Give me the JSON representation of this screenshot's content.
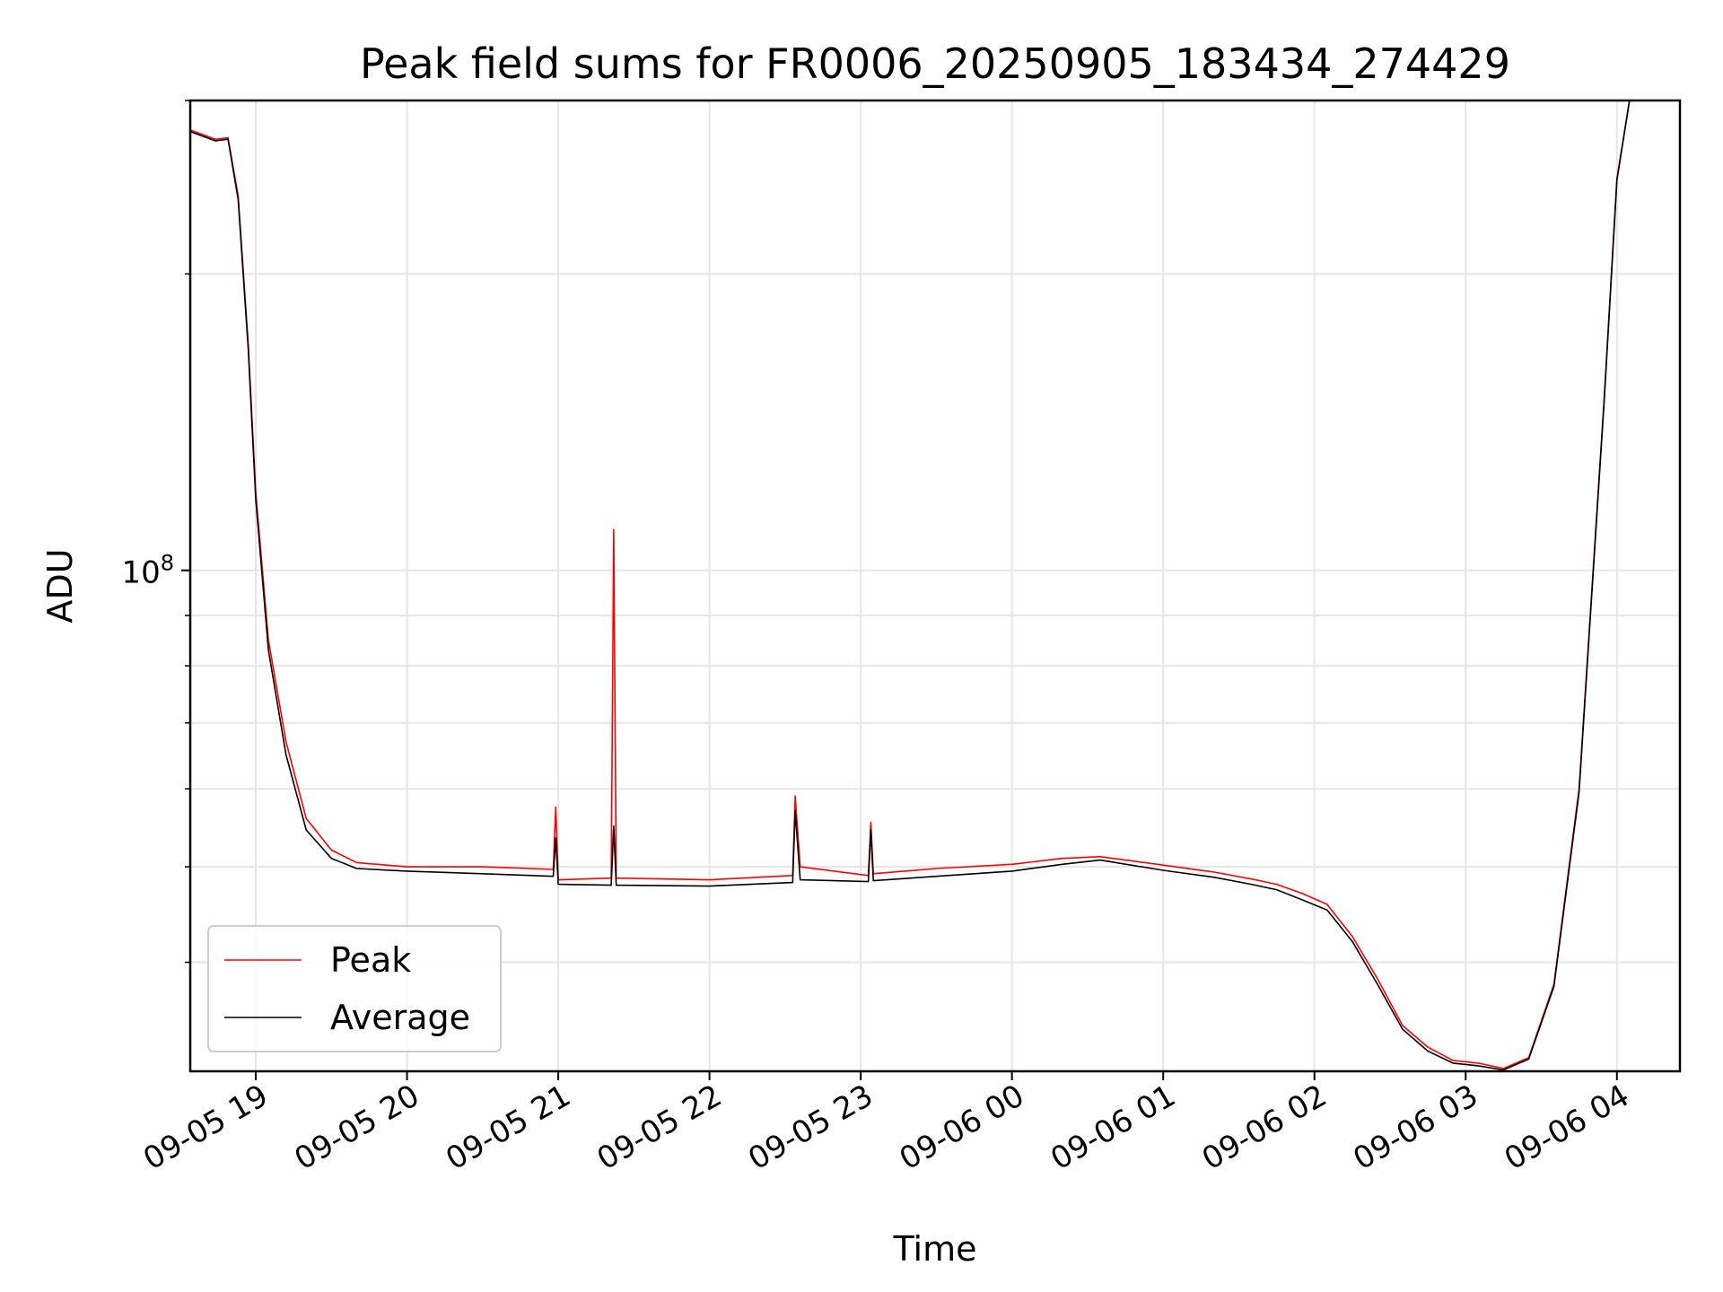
{
  "chart_data": {
    "type": "line",
    "title": "Peak field sums for FR0006_20250905_183434_274429",
    "xlabel": "Time",
    "ylabel": "ADU",
    "y_scale": "log",
    "grid": true,
    "legend_position": "lower-left",
    "xlim": [
      "2025-09-05T18:34",
      "2025-09-06T04:25"
    ],
    "ylim": [
      31000000,
      300000000
    ],
    "x_ticks": [
      {
        "t": "2025-09-05T19:00",
        "label": "09-05 19"
      },
      {
        "t": "2025-09-05T20:00",
        "label": "09-05 20"
      },
      {
        "t": "2025-09-05T21:00",
        "label": "09-05 21"
      },
      {
        "t": "2025-09-05T22:00",
        "label": "09-05 22"
      },
      {
        "t": "2025-09-05T23:00",
        "label": "09-05 23"
      },
      {
        "t": "2025-09-06T00:00",
        "label": "09-06 00"
      },
      {
        "t": "2025-09-06T01:00",
        "label": "09-06 01"
      },
      {
        "t": "2025-09-06T02:00",
        "label": "09-06 02"
      },
      {
        "t": "2025-09-06T03:00",
        "label": "09-06 03"
      },
      {
        "t": "2025-09-06T04:00",
        "label": "09-06 04"
      }
    ],
    "y_major_ticks": [
      {
        "value": 100000000,
        "label": "10",
        "exponent": "8"
      }
    ],
    "y_minor_ticks": [
      40000000,
      50000000,
      60000000,
      70000000,
      80000000,
      90000000,
      200000000,
      300000000
    ],
    "series": [
      {
        "name": "Peak",
        "color": "#ff0000",
        "points": [
          [
            "2025-09-05T18:34",
            280000000
          ],
          [
            "2025-09-05T18:44",
            274000000
          ],
          [
            "2025-09-05T18:49",
            275000000
          ],
          [
            "2025-09-05T18:53",
            240000000
          ],
          [
            "2025-09-05T18:57",
            170000000
          ],
          [
            "2025-09-05T19:00",
            120000000
          ],
          [
            "2025-09-05T19:05",
            85000000
          ],
          [
            "2025-09-05T19:12",
            67000000
          ],
          [
            "2025-09-05T19:20",
            56000000
          ],
          [
            "2025-09-05T19:30",
            52000000
          ],
          [
            "2025-09-05T19:40",
            50500000
          ],
          [
            "2025-09-05T20:00",
            50000000
          ],
          [
            "2025-09-05T20:30",
            50000000
          ],
          [
            "2025-09-05T20:58",
            49700000
          ],
          [
            "2025-09-05T20:59",
            57500000
          ],
          [
            "2025-09-05T21:00",
            48500000
          ],
          [
            "2025-09-05T21:21",
            48700000
          ],
          [
            "2025-09-05T21:22",
            110000000
          ],
          [
            "2025-09-05T21:23",
            48700000
          ],
          [
            "2025-09-05T22:00",
            48500000
          ],
          [
            "2025-09-05T22:33",
            49000000
          ],
          [
            "2025-09-05T22:34",
            59000000
          ],
          [
            "2025-09-05T22:36",
            50000000
          ],
          [
            "2025-09-05T23:03",
            49000000
          ],
          [
            "2025-09-05T23:04",
            55500000
          ],
          [
            "2025-09-05T23:05",
            49200000
          ],
          [
            "2025-09-05T23:30",
            49800000
          ],
          [
            "2025-09-06T00:00",
            50300000
          ],
          [
            "2025-09-06T00:20",
            51000000
          ],
          [
            "2025-09-06T00:35",
            51200000
          ],
          [
            "2025-09-06T01:00",
            50200000
          ],
          [
            "2025-09-06T01:20",
            49400000
          ],
          [
            "2025-09-06T01:35",
            48600000
          ],
          [
            "2025-09-06T01:45",
            48000000
          ],
          [
            "2025-09-06T01:55",
            47000000
          ],
          [
            "2025-09-06T02:05",
            45800000
          ],
          [
            "2025-09-06T02:15",
            42500000
          ],
          [
            "2025-09-06T02:25",
            38500000
          ],
          [
            "2025-09-06T02:35",
            34500000
          ],
          [
            "2025-09-06T02:45",
            32800000
          ],
          [
            "2025-09-06T02:55",
            31800000
          ],
          [
            "2025-09-06T03:05",
            31600000
          ],
          [
            "2025-09-06T03:15",
            31200000
          ],
          [
            "2025-09-06T03:25",
            32000000
          ],
          [
            "2025-09-06T03:35",
            38000000
          ],
          [
            "2025-09-06T03:45",
            60000000
          ],
          [
            "2025-09-06T03:55",
            150000000
          ],
          [
            "2025-09-06T04:00",
            250000000
          ],
          [
            "2025-09-06T04:05",
            300000000
          ],
          [
            "2025-09-06T04:25",
            300000000
          ]
        ]
      },
      {
        "name": "Average",
        "color": "#000000",
        "points": [
          [
            "2025-09-05T18:34",
            279000000
          ],
          [
            "2025-09-05T18:44",
            273000000
          ],
          [
            "2025-09-05T18:49",
            274000000
          ],
          [
            "2025-09-05T18:53",
            238000000
          ],
          [
            "2025-09-05T18:57",
            168000000
          ],
          [
            "2025-09-05T19:00",
            118000000
          ],
          [
            "2025-09-05T19:05",
            83000000
          ],
          [
            "2025-09-05T19:12",
            65000000
          ],
          [
            "2025-09-05T19:20",
            54500000
          ],
          [
            "2025-09-05T19:30",
            51000000
          ],
          [
            "2025-09-05T19:40",
            49800000
          ],
          [
            "2025-09-05T20:00",
            49500000
          ],
          [
            "2025-09-05T20:30",
            49200000
          ],
          [
            "2025-09-05T20:58",
            48900000
          ],
          [
            "2025-09-05T20:59",
            53500000
          ],
          [
            "2025-09-05T21:00",
            48000000
          ],
          [
            "2025-09-05T21:21",
            47900000
          ],
          [
            "2025-09-05T21:22",
            55000000
          ],
          [
            "2025-09-05T21:23",
            47900000
          ],
          [
            "2025-09-05T22:00",
            47800000
          ],
          [
            "2025-09-05T22:33",
            48200000
          ],
          [
            "2025-09-05T22:34",
            57000000
          ],
          [
            "2025-09-05T22:36",
            48500000
          ],
          [
            "2025-09-05T23:03",
            48300000
          ],
          [
            "2025-09-05T23:04",
            54500000
          ],
          [
            "2025-09-05T23:05",
            48400000
          ],
          [
            "2025-09-05T23:30",
            48900000
          ],
          [
            "2025-09-06T00:00",
            49500000
          ],
          [
            "2025-09-06T00:20",
            50300000
          ],
          [
            "2025-09-06T00:35",
            50800000
          ],
          [
            "2025-09-06T01:00",
            49600000
          ],
          [
            "2025-09-06T01:20",
            48800000
          ],
          [
            "2025-09-06T01:35",
            48000000
          ],
          [
            "2025-09-06T01:45",
            47400000
          ],
          [
            "2025-09-06T01:55",
            46300000
          ],
          [
            "2025-09-06T02:05",
            45200000
          ],
          [
            "2025-09-06T02:15",
            42000000
          ],
          [
            "2025-09-06T02:25",
            38000000
          ],
          [
            "2025-09-06T02:35",
            34200000
          ],
          [
            "2025-09-06T02:45",
            32500000
          ],
          [
            "2025-09-06T02:55",
            31600000
          ],
          [
            "2025-09-06T03:05",
            31400000
          ],
          [
            "2025-09-06T03:15",
            31100000
          ],
          [
            "2025-09-06T03:25",
            31900000
          ],
          [
            "2025-09-06T03:35",
            37800000
          ],
          [
            "2025-09-06T03:45",
            59500000
          ],
          [
            "2025-09-06T03:55",
            149000000
          ],
          [
            "2025-09-06T04:00",
            249000000
          ],
          [
            "2025-09-06T04:05",
            300000000
          ],
          [
            "2025-09-06T04:25",
            300000000
          ]
        ]
      }
    ]
  }
}
